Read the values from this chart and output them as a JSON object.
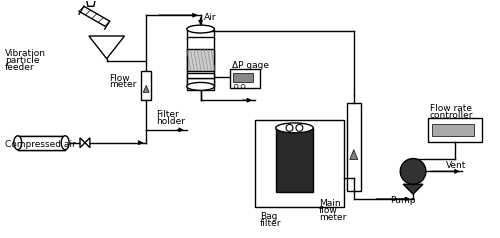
{
  "line_color": "black",
  "line_width": 1.0,
  "font_size": 6.5,
  "labels": {
    "vibration_feeder": [
      "Vibration",
      "particle",
      "feeder"
    ],
    "flow_meter": [
      "Flow",
      "meter"
    ],
    "compressed_air": "Compressed air",
    "filter_holder": [
      "Filter",
      "holder"
    ],
    "air_label": "Air",
    "dp_gage": "ΔP gage",
    "bag_filter": [
      "Bag",
      "filter"
    ],
    "main_flow_meter": [
      "Main",
      "flow",
      "meter"
    ],
    "flow_rate_controller": [
      "Flow rate",
      "controller"
    ],
    "pump": "Pump",
    "vent": "Vent"
  }
}
